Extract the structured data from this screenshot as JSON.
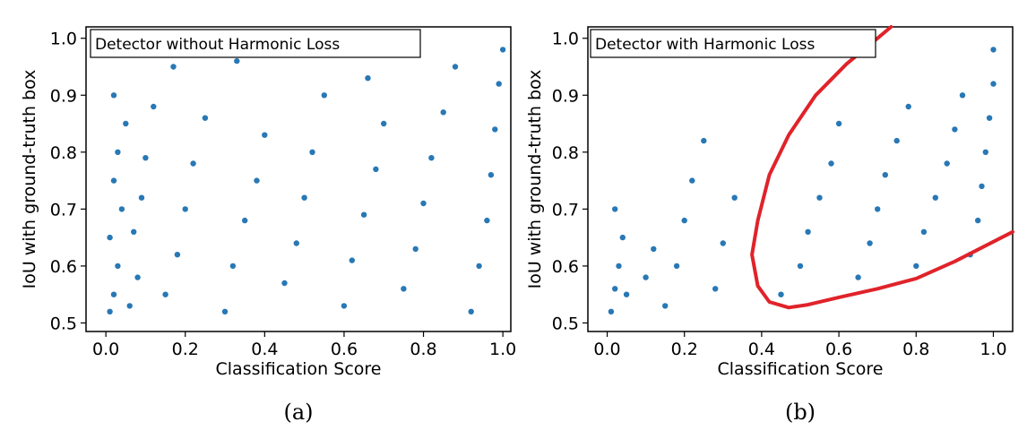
{
  "chart_data": [
    {
      "id": "a",
      "type": "scatter",
      "annotation": "Detector without Harmonic Loss",
      "xlabel": "Classification Score",
      "ylabel": "IoU with ground-truth box",
      "xlim": [
        -0.05,
        1.02
      ],
      "ylim": [
        0.485,
        1.02
      ],
      "xticks": [
        0.0,
        0.2,
        0.4,
        0.6,
        0.8,
        1.0
      ],
      "xtick_labels": [
        "0.0",
        "0.2",
        "0.4",
        "0.6",
        "0.8",
        "1.0"
      ],
      "yticks": [
        0.5,
        0.6,
        0.7,
        0.8,
        0.9,
        1.0
      ],
      "ytick_labels": [
        "0.5",
        "0.6",
        "0.7",
        "0.8",
        "0.9",
        "1.0"
      ],
      "caption": "(a)",
      "point_color": "#2878b5",
      "grid": false,
      "distribution_note": "dense bands near x≈0 and x≈1, uniformly scattered in between",
      "points": [
        [
          0.01,
          0.52
        ],
        [
          0.02,
          0.55
        ],
        [
          0.03,
          0.6
        ],
        [
          0.01,
          0.65
        ],
        [
          0.04,
          0.7
        ],
        [
          0.02,
          0.75
        ],
        [
          0.03,
          0.8
        ],
        [
          0.05,
          0.85
        ],
        [
          0.02,
          0.9
        ],
        [
          0.06,
          0.53
        ],
        [
          0.08,
          0.58
        ],
        [
          0.07,
          0.66
        ],
        [
          0.09,
          0.72
        ],
        [
          0.1,
          0.79
        ],
        [
          0.12,
          0.88
        ],
        [
          0.15,
          0.55
        ],
        [
          0.18,
          0.62
        ],
        [
          0.2,
          0.7
        ],
        [
          0.22,
          0.78
        ],
        [
          0.25,
          0.86
        ],
        [
          0.17,
          0.95
        ],
        [
          0.3,
          0.52
        ],
        [
          0.32,
          0.6
        ],
        [
          0.35,
          0.68
        ],
        [
          0.38,
          0.75
        ],
        [
          0.4,
          0.83
        ],
        [
          0.33,
          0.96
        ],
        [
          0.45,
          0.57
        ],
        [
          0.48,
          0.64
        ],
        [
          0.5,
          0.72
        ],
        [
          0.52,
          0.8
        ],
        [
          0.55,
          0.9
        ],
        [
          0.6,
          0.53
        ],
        [
          0.62,
          0.61
        ],
        [
          0.65,
          0.69
        ],
        [
          0.68,
          0.77
        ],
        [
          0.7,
          0.85
        ],
        [
          0.66,
          0.93
        ],
        [
          0.75,
          0.56
        ],
        [
          0.78,
          0.63
        ],
        [
          0.8,
          0.71
        ],
        [
          0.82,
          0.79
        ],
        [
          0.85,
          0.87
        ],
        [
          0.88,
          0.95
        ],
        [
          0.92,
          0.52
        ],
        [
          0.94,
          0.6
        ],
        [
          0.96,
          0.68
        ],
        [
          0.97,
          0.76
        ],
        [
          0.98,
          0.84
        ],
        [
          0.99,
          0.92
        ],
        [
          1.0,
          0.98
        ]
      ]
    },
    {
      "id": "b",
      "type": "scatter",
      "annotation": "Detector with Harmonic Loss",
      "xlabel": "Classification Score",
      "ylabel": "IoU with ground-truth box",
      "xlim": [
        -0.05,
        1.05
      ],
      "ylim": [
        0.485,
        1.02
      ],
      "xticks": [
        0.0,
        0.2,
        0.4,
        0.6,
        0.8,
        1.0
      ],
      "xtick_labels": [
        "0.0",
        "0.2",
        "0.4",
        "0.6",
        "0.8",
        "1.0"
      ],
      "yticks": [
        0.5,
        0.6,
        0.7,
        0.8,
        0.9,
        1.0
      ],
      "ytick_labels": [
        "0.5",
        "0.6",
        "0.7",
        "0.8",
        "0.9",
        "1.0"
      ],
      "caption": "(b)",
      "point_color": "#2878b5",
      "curve_color": "#e0232a",
      "grid": false,
      "distribution_note": "points concentrate toward high score / high IoU; red curve encloses the correlated region",
      "points": [
        [
          0.01,
          0.52
        ],
        [
          0.02,
          0.56
        ],
        [
          0.03,
          0.6
        ],
        [
          0.04,
          0.65
        ],
        [
          0.02,
          0.7
        ],
        [
          0.05,
          0.55
        ],
        [
          0.1,
          0.58
        ],
        [
          0.12,
          0.63
        ],
        [
          0.15,
          0.53
        ],
        [
          0.18,
          0.6
        ],
        [
          0.2,
          0.68
        ],
        [
          0.22,
          0.75
        ],
        [
          0.25,
          0.82
        ],
        [
          0.28,
          0.56
        ],
        [
          0.3,
          0.64
        ],
        [
          0.33,
          0.72
        ],
        [
          0.45,
          0.55
        ],
        [
          0.5,
          0.6
        ],
        [
          0.52,
          0.66
        ],
        [
          0.55,
          0.72
        ],
        [
          0.58,
          0.78
        ],
        [
          0.6,
          0.85
        ],
        [
          0.65,
          0.58
        ],
        [
          0.68,
          0.64
        ],
        [
          0.7,
          0.7
        ],
        [
          0.72,
          0.76
        ],
        [
          0.75,
          0.82
        ],
        [
          0.78,
          0.88
        ],
        [
          0.8,
          0.6
        ],
        [
          0.82,
          0.66
        ],
        [
          0.85,
          0.72
        ],
        [
          0.88,
          0.78
        ],
        [
          0.9,
          0.84
        ],
        [
          0.92,
          0.9
        ],
        [
          0.94,
          0.62
        ],
        [
          0.96,
          0.68
        ],
        [
          0.97,
          0.74
        ],
        [
          0.98,
          0.8
        ],
        [
          0.99,
          0.86
        ],
        [
          1.0,
          0.92
        ],
        [
          1.0,
          0.98
        ]
      ],
      "curve": [
        [
          1.05,
          0.66
        ],
        [
          0.9,
          0.608
        ],
        [
          0.8,
          0.578
        ],
        [
          0.7,
          0.56
        ],
        [
          0.6,
          0.545
        ],
        [
          0.52,
          0.532
        ],
        [
          0.47,
          0.527
        ],
        [
          0.42,
          0.537
        ],
        [
          0.39,
          0.565
        ],
        [
          0.375,
          0.62
        ],
        [
          0.39,
          0.68
        ],
        [
          0.42,
          0.76
        ],
        [
          0.47,
          0.83
        ],
        [
          0.54,
          0.9
        ],
        [
          0.62,
          0.955
        ],
        [
          0.7,
          1.0
        ],
        [
          0.735,
          1.02
        ]
      ]
    }
  ]
}
